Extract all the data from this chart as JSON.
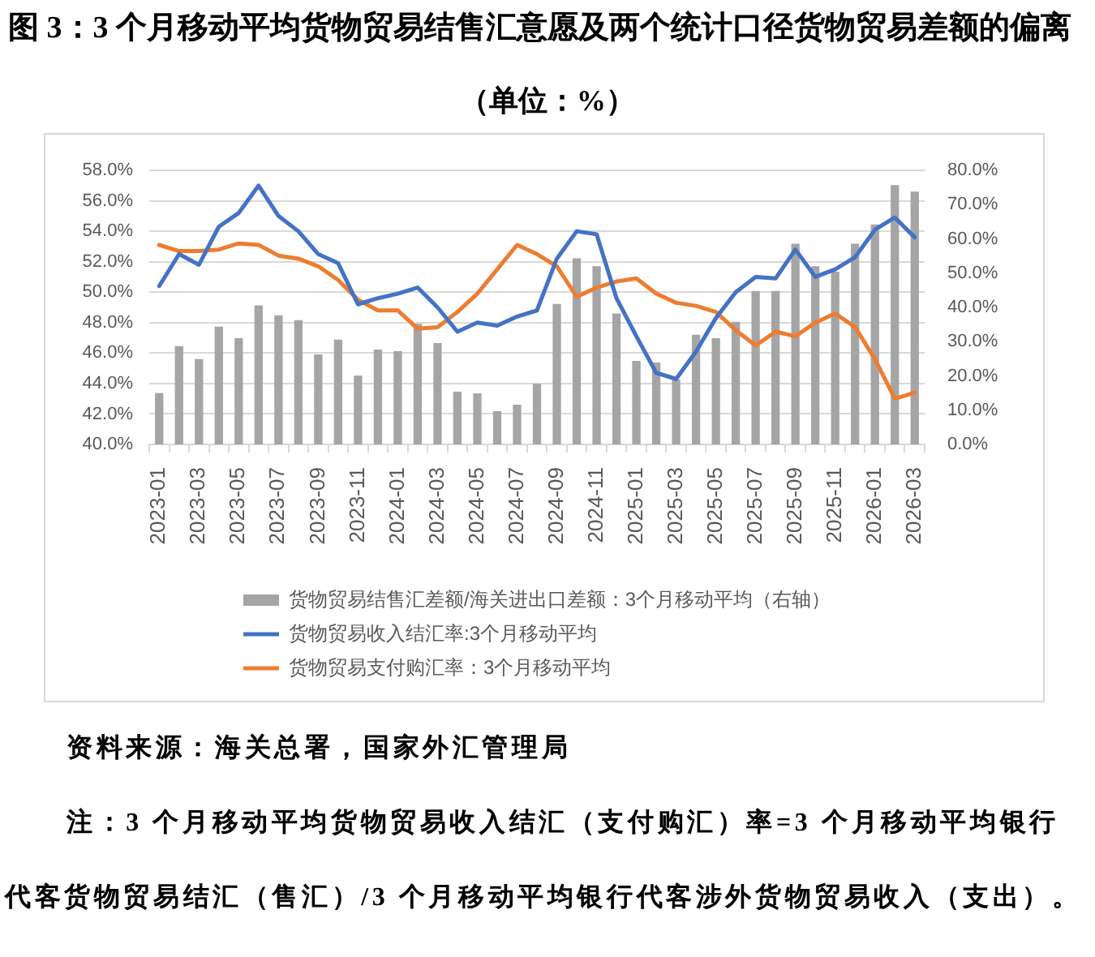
{
  "chart_data": {
    "type": "bar",
    "title": "图 3：3 个月移动平均货物贸易结售汇意愿及两个统计口径货物贸易差额的偏离",
    "subtitle": "（单位：%）",
    "categories": [
      "2023-01",
      null,
      "2023-03",
      null,
      "2023-05",
      null,
      "2023-07",
      null,
      "2023-09",
      null,
      "2023-11",
      null,
      "2024-01",
      null,
      "2024-03",
      null,
      "2024-05",
      null,
      "2024-07",
      null,
      "2024-09",
      null,
      "2024-11",
      null,
      "2025-01",
      null,
      "2025-03",
      null,
      "2025-05",
      null,
      "2025-07",
      null,
      "2025-09",
      null,
      "2025-11",
      null,
      "2026-01",
      null,
      "2026-03"
    ],
    "series": [
      {
        "name": "货物贸易结售汇差额/海关进出口差额：3个月移动平均（右轴）",
        "axis": "y2",
        "color": "#a5a5a5",
        "values": [
          15.0,
          28.7,
          24.9,
          34.4,
          31.0,
          40.6,
          37.7,
          36.3,
          26.3,
          30.6,
          20.1,
          27.7,
          27.2,
          35.2,
          29.6,
          15.4,
          14.9,
          9.7,
          11.6,
          17.7,
          41.0,
          54.3,
          52.0,
          38.2,
          24.4,
          23.9,
          19.0,
          32.0,
          31.0,
          35.8,
          44.8,
          44.8,
          58.6,
          52.0,
          50.4,
          58.6,
          64.2,
          75.7,
          73.8
        ]
      },
      {
        "name": "货物贸易收入结汇率:3个月移动平均",
        "type": "line",
        "color": "#4472c4",
        "values": [
          50.4,
          52.5,
          51.8,
          54.3,
          55.2,
          57.0,
          55.0,
          54.0,
          52.5,
          51.9,
          49.2,
          49.6,
          49.9,
          50.3,
          49.0,
          47.4,
          48.0,
          47.8,
          48.4,
          48.8,
          52.2,
          54.0,
          53.8,
          49.6,
          47.1,
          44.7,
          44.3,
          46.1,
          48.3,
          50.0,
          51.0,
          50.9,
          52.8,
          51.0,
          51.5,
          52.3,
          54.1,
          54.9,
          53.6
        ]
      },
      {
        "name": "货物贸易支付购汇率：3个月移动平均",
        "type": "line",
        "color": "#ed7d31",
        "values": [
          53.1,
          52.7,
          52.7,
          52.8,
          53.2,
          53.1,
          52.4,
          52.2,
          51.7,
          50.8,
          49.5,
          48.8,
          48.8,
          47.6,
          47.7,
          48.7,
          49.9,
          51.5,
          53.1,
          52.5,
          51.7,
          49.7,
          50.3,
          50.7,
          50.9,
          49.9,
          49.3,
          49.1,
          48.7,
          47.5,
          46.5,
          47.4,
          47.1,
          48.0,
          48.6,
          47.7,
          45.6,
          43.0,
          43.4
        ]
      }
    ],
    "ylim": [
      40,
      58
    ],
    "yticks": [
      {
        "value": 40,
        "label": "40.0%"
      },
      {
        "value": 42,
        "label": "42.0%"
      },
      {
        "value": 44,
        "label": "44.0%"
      },
      {
        "value": 46,
        "label": "46.0%"
      },
      {
        "value": 48,
        "label": "48.0%"
      },
      {
        "value": 50,
        "label": "50.0%"
      },
      {
        "value": 52,
        "label": "52.0%"
      },
      {
        "value": 54,
        "label": "54.0%"
      },
      {
        "value": 56,
        "label": "56.0%"
      },
      {
        "value": 58,
        "label": "58.0%"
      }
    ],
    "y2lim": [
      0,
      80
    ],
    "y2ticks": [
      {
        "value": 0,
        "label": "0.0%"
      },
      {
        "value": 10,
        "label": "10.0%"
      },
      {
        "value": 20,
        "label": "20.0%"
      },
      {
        "value": 30,
        "label": "30.0%"
      },
      {
        "value": 40,
        "label": "40.0%"
      },
      {
        "value": 50,
        "label": "50.0%"
      },
      {
        "value": 60,
        "label": "60.0%"
      },
      {
        "value": 70,
        "label": "70.0%"
      },
      {
        "value": 80,
        "label": "80.0%"
      }
    ],
    "grid": "y",
    "legend": "bottom",
    "marker": "none",
    "line_style": "solid",
    "annotations": [
      "资料来源：海关总署，国家外汇管理局",
      "注：3 个月移动平均货物贸易收入结汇（支付购汇）率=3 个月移动平均银行代客货物贸易结汇（售汇）/3 个月移动平均银行代客涉外货物贸易收入（支出）。"
    ]
  }
}
